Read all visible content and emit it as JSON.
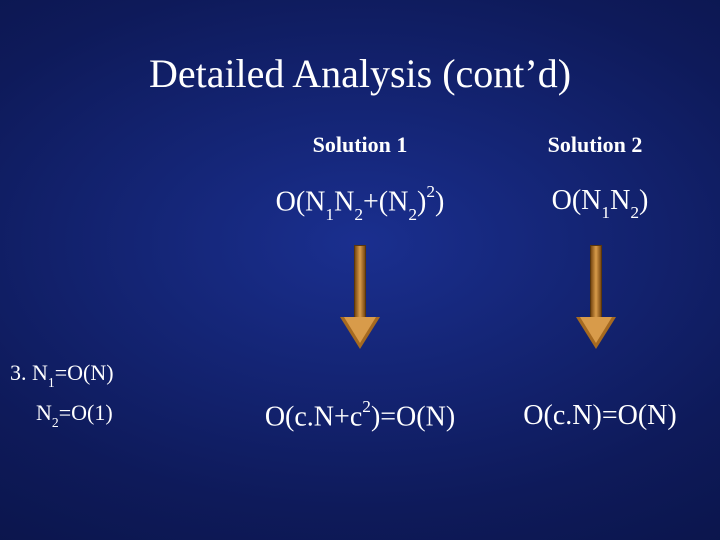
{
  "title": "Detailed Analysis (cont’d)",
  "columns": {
    "sol1": "Solution 1",
    "sol2": "Solution 2"
  },
  "formulas": {
    "sol1_top_pre": "O(N",
    "sol1_top_s1": "1",
    "sol1_top_mid1": "N",
    "sol1_top_s2": "2",
    "sol1_top_mid2": "+(N",
    "sol1_top_s3": "2",
    "sol1_top_mid3": ")",
    "sol1_top_e1": "2",
    "sol1_top_post": ")",
    "sol2_top_pre": "O(N",
    "sol2_top_s1": "1",
    "sol2_top_mid1": "N",
    "sol2_top_s2": "2",
    "sol2_top_post": ")",
    "sol1_bot_pre": "O(c.N+c",
    "sol1_bot_e1": "2",
    "sol1_bot_post": ")=O(N)",
    "sol2_bot": "O(c.N)=O(N)"
  },
  "notes": {
    "line1_pre": "3.  N",
    "line1_s1": "1",
    "line1_post": "=O(N)",
    "line2_pre": "N",
    "line2_s1": "2",
    "line2_post": "=O(1)"
  },
  "style": {
    "arrow_fill": "#d89b4a",
    "arrow_edge": "#7a4a12"
  }
}
